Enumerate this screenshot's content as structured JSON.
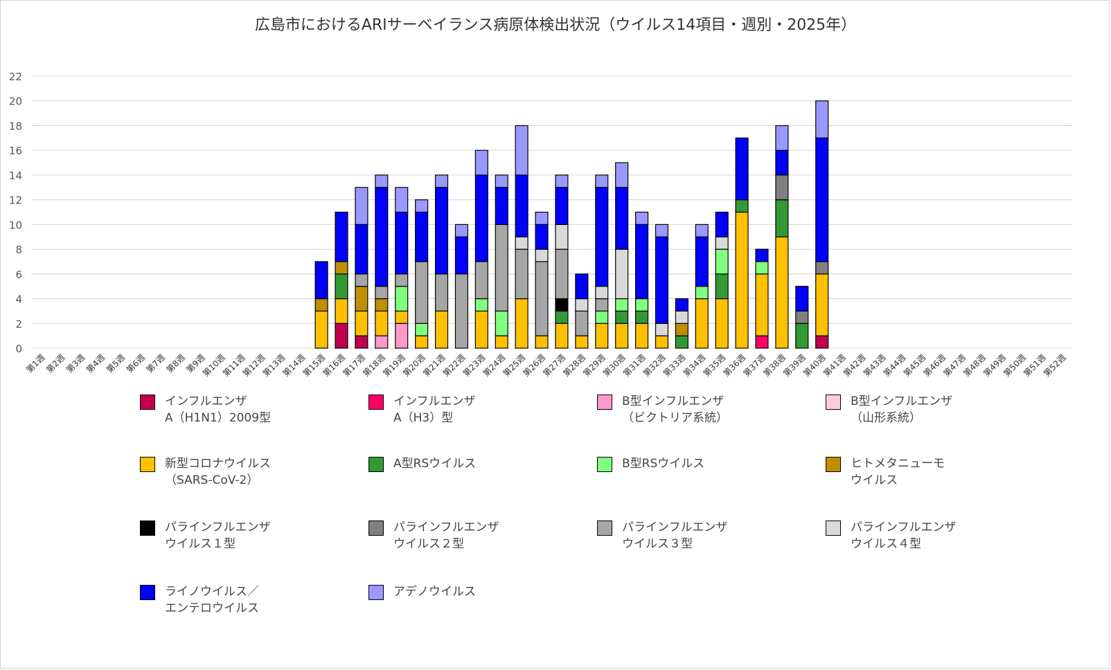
{
  "chart_data": {
    "type": "bar",
    "stacked": true,
    "title": "広島市におけるARIサーベイランス病原体検出状況（ウイルス14項目・週別・2025年）",
    "xlabel": "",
    "ylabel": "",
    "ylim": [
      0,
      22
    ],
    "yticks": [
      0,
      2,
      4,
      6,
      8,
      10,
      12,
      14,
      16,
      18,
      20,
      22
    ],
    "grid": true,
    "legend_position": "bottom",
    "categories": [
      "第1週",
      "第2週",
      "第3週",
      "第4週",
      "第5週",
      "第6週",
      "第7週",
      "第8週",
      "第9週",
      "第10週",
      "第11週",
      "第12週",
      "第13週",
      "第14週",
      "第15週",
      "第16週",
      "第17週",
      "第18週",
      "第19週",
      "第20週",
      "第21週",
      "第22週",
      "第23週",
      "第24週",
      "第25週",
      "第26週",
      "第27週",
      "第28週",
      "第29週",
      "第30週",
      "第31週",
      "第32週",
      "第33週",
      "第34週",
      "第35週",
      "第36週",
      "第37週",
      "第38週",
      "第39週",
      "第40週",
      "第41週",
      "第42週",
      "第43週",
      "第44週",
      "第45週",
      "第46週",
      "第47週",
      "第48週",
      "第49週",
      "第50週",
      "第51週",
      "第52週"
    ],
    "series": [
      {
        "name": "インフルエンザ\nA（H1N1）2009型",
        "color": "#C0004F",
        "values": [
          0,
          0,
          0,
          0,
          0,
          0,
          0,
          0,
          0,
          0,
          0,
          0,
          0,
          0,
          0,
          2,
          1,
          0,
          0,
          0,
          0,
          0,
          0,
          0,
          0,
          0,
          0,
          0,
          0,
          0,
          0,
          0,
          0,
          0,
          0,
          0,
          0,
          0,
          0,
          1,
          0,
          0,
          0,
          0,
          0,
          0,
          0,
          0,
          0,
          0,
          0,
          0
        ]
      },
      {
        "name": "インフルエンザ\nA（H3）型",
        "color": "#FF0066",
        "values": [
          0,
          0,
          0,
          0,
          0,
          0,
          0,
          0,
          0,
          0,
          0,
          0,
          0,
          0,
          0,
          0,
          0,
          0,
          0,
          0,
          0,
          0,
          0,
          0,
          0,
          0,
          0,
          0,
          0,
          0,
          0,
          0,
          0,
          0,
          0,
          0,
          1,
          0,
          0,
          0,
          0,
          0,
          0,
          0,
          0,
          0,
          0,
          0,
          0,
          0,
          0,
          0
        ]
      },
      {
        "name": "B型インフルエンザ\n（ビクトリア系統）",
        "color": "#FF99CC",
        "values": [
          0,
          0,
          0,
          0,
          0,
          0,
          0,
          0,
          0,
          0,
          0,
          0,
          0,
          0,
          0,
          0,
          0,
          1,
          2,
          0,
          0,
          0,
          0,
          0,
          0,
          0,
          0,
          0,
          0,
          0,
          0,
          0,
          0,
          0,
          0,
          0,
          0,
          0,
          0,
          0,
          0,
          0,
          0,
          0,
          0,
          0,
          0,
          0,
          0,
          0,
          0,
          0
        ]
      },
      {
        "name": "B型インフルエンザ\n（山形系統）",
        "color": "#FFCCE0",
        "values": [
          0,
          0,
          0,
          0,
          0,
          0,
          0,
          0,
          0,
          0,
          0,
          0,
          0,
          0,
          0,
          0,
          0,
          0,
          0,
          0,
          0,
          0,
          0,
          0,
          0,
          0,
          0,
          0,
          0,
          0,
          0,
          0,
          0,
          0,
          0,
          0,
          0,
          0,
          0,
          0,
          0,
          0,
          0,
          0,
          0,
          0,
          0,
          0,
          0,
          0,
          0,
          0
        ]
      },
      {
        "name": "新型コロナウイルス\n（SARS-CoV-2）",
        "color": "#FFC000",
        "values": [
          0,
          0,
          0,
          0,
          0,
          0,
          0,
          0,
          0,
          0,
          0,
          0,
          0,
          0,
          3,
          2,
          2,
          2,
          1,
          1,
          3,
          0,
          3,
          1,
          4,
          1,
          2,
          1,
          2,
          2,
          2,
          1,
          0,
          4,
          4,
          11,
          5,
          9,
          0,
          5,
          0,
          0,
          0,
          0,
          0,
          0,
          0,
          0,
          0,
          0,
          0,
          0
        ]
      },
      {
        "name": "A型RSウイルス",
        "color": "#339933",
        "values": [
          0,
          0,
          0,
          0,
          0,
          0,
          0,
          0,
          0,
          0,
          0,
          0,
          0,
          0,
          0,
          2,
          0,
          0,
          0,
          0,
          0,
          0,
          0,
          0,
          0,
          0,
          1,
          0,
          0,
          1,
          1,
          0,
          1,
          0,
          2,
          1,
          0,
          3,
          2,
          0,
          0,
          0,
          0,
          0,
          0,
          0,
          0,
          0,
          0,
          0,
          0,
          0
        ]
      },
      {
        "name": "B型RSウイルス",
        "color": "#80FF80",
        "values": [
          0,
          0,
          0,
          0,
          0,
          0,
          0,
          0,
          0,
          0,
          0,
          0,
          0,
          0,
          0,
          0,
          0,
          0,
          2,
          1,
          0,
          0,
          1,
          2,
          0,
          0,
          0,
          0,
          1,
          1,
          1,
          0,
          0,
          1,
          2,
          0,
          1,
          0,
          0,
          0,
          0,
          0,
          0,
          0,
          0,
          0,
          0,
          0,
          0,
          0,
          0,
          0
        ]
      },
      {
        "name": "ヒトメタニューモ\nウイルス",
        "color": "#BF8F00",
        "values": [
          0,
          0,
          0,
          0,
          0,
          0,
          0,
          0,
          0,
          0,
          0,
          0,
          0,
          0,
          1,
          1,
          2,
          1,
          0,
          0,
          0,
          0,
          0,
          0,
          0,
          0,
          0,
          0,
          0,
          0,
          0,
          0,
          1,
          0,
          0,
          0,
          0,
          0,
          0,
          0,
          0,
          0,
          0,
          0,
          0,
          0,
          0,
          0,
          0,
          0,
          0,
          0
        ]
      },
      {
        "name": "パラインフルエンザ\nウイルス１型",
        "color": "#000000",
        "values": [
          0,
          0,
          0,
          0,
          0,
          0,
          0,
          0,
          0,
          0,
          0,
          0,
          0,
          0,
          0,
          0,
          0,
          0,
          0,
          0,
          0,
          0,
          0,
          0,
          0,
          0,
          1,
          0,
          0,
          0,
          0,
          0,
          0,
          0,
          0,
          0,
          0,
          0,
          0,
          0,
          0,
          0,
          0,
          0,
          0,
          0,
          0,
          0,
          0,
          0,
          0,
          0
        ]
      },
      {
        "name": "パラインフルエンザ\nウイルス２型",
        "color": "#808080",
        "values": [
          0,
          0,
          0,
          0,
          0,
          0,
          0,
          0,
          0,
          0,
          0,
          0,
          0,
          0,
          0,
          0,
          0,
          0,
          0,
          0,
          0,
          0,
          0,
          0,
          0,
          0,
          0,
          0,
          0,
          0,
          0,
          0,
          0,
          0,
          0,
          0,
          0,
          2,
          1,
          1,
          0,
          0,
          0,
          0,
          0,
          0,
          0,
          0,
          0,
          0,
          0,
          0
        ]
      },
      {
        "name": "パラインフルエンザ\nウイルス３型",
        "color": "#A6A6A6",
        "values": [
          0,
          0,
          0,
          0,
          0,
          0,
          0,
          0,
          0,
          0,
          0,
          0,
          0,
          0,
          0,
          0,
          1,
          1,
          1,
          5,
          3,
          6,
          3,
          7,
          4,
          6,
          4,
          2,
          1,
          0,
          0,
          0,
          0,
          0,
          0,
          0,
          0,
          0,
          0,
          0,
          0,
          0,
          0,
          0,
          0,
          0,
          0,
          0,
          0,
          0,
          0,
          0
        ]
      },
      {
        "name": "パラインフルエンザ\nウイルス４型",
        "color": "#D9D9D9",
        "values": [
          0,
          0,
          0,
          0,
          0,
          0,
          0,
          0,
          0,
          0,
          0,
          0,
          0,
          0,
          0,
          0,
          0,
          0,
          0,
          0,
          0,
          0,
          0,
          0,
          1,
          1,
          2,
          1,
          1,
          4,
          0,
          1,
          1,
          0,
          1,
          0,
          0,
          0,
          0,
          0,
          0,
          0,
          0,
          0,
          0,
          0,
          0,
          0,
          0,
          0,
          0,
          0
        ]
      },
      {
        "name": "ライノウイルス／\nエンテロウイルス",
        "color": "#0000FF",
        "values": [
          0,
          0,
          0,
          0,
          0,
          0,
          0,
          0,
          0,
          0,
          0,
          0,
          0,
          0,
          3,
          4,
          4,
          8,
          5,
          4,
          7,
          3,
          7,
          3,
          5,
          2,
          3,
          2,
          8,
          5,
          6,
          7,
          1,
          4,
          2,
          5,
          1,
          2,
          2,
          10,
          0,
          0,
          0,
          0,
          0,
          0,
          0,
          0,
          0,
          0,
          0,
          0
        ]
      },
      {
        "name": "アデノウイルス",
        "color": "#9999FF",
        "values": [
          0,
          0,
          0,
          0,
          0,
          0,
          0,
          0,
          0,
          0,
          0,
          0,
          0,
          0,
          0,
          0,
          3,
          1,
          2,
          1,
          1,
          1,
          2,
          1,
          4,
          1,
          1,
          0,
          1,
          2,
          1,
          1,
          0,
          1,
          0,
          0,
          0,
          2,
          0,
          3,
          0,
          0,
          0,
          0,
          0,
          0,
          0,
          0,
          0,
          0,
          0,
          0
        ]
      }
    ]
  }
}
